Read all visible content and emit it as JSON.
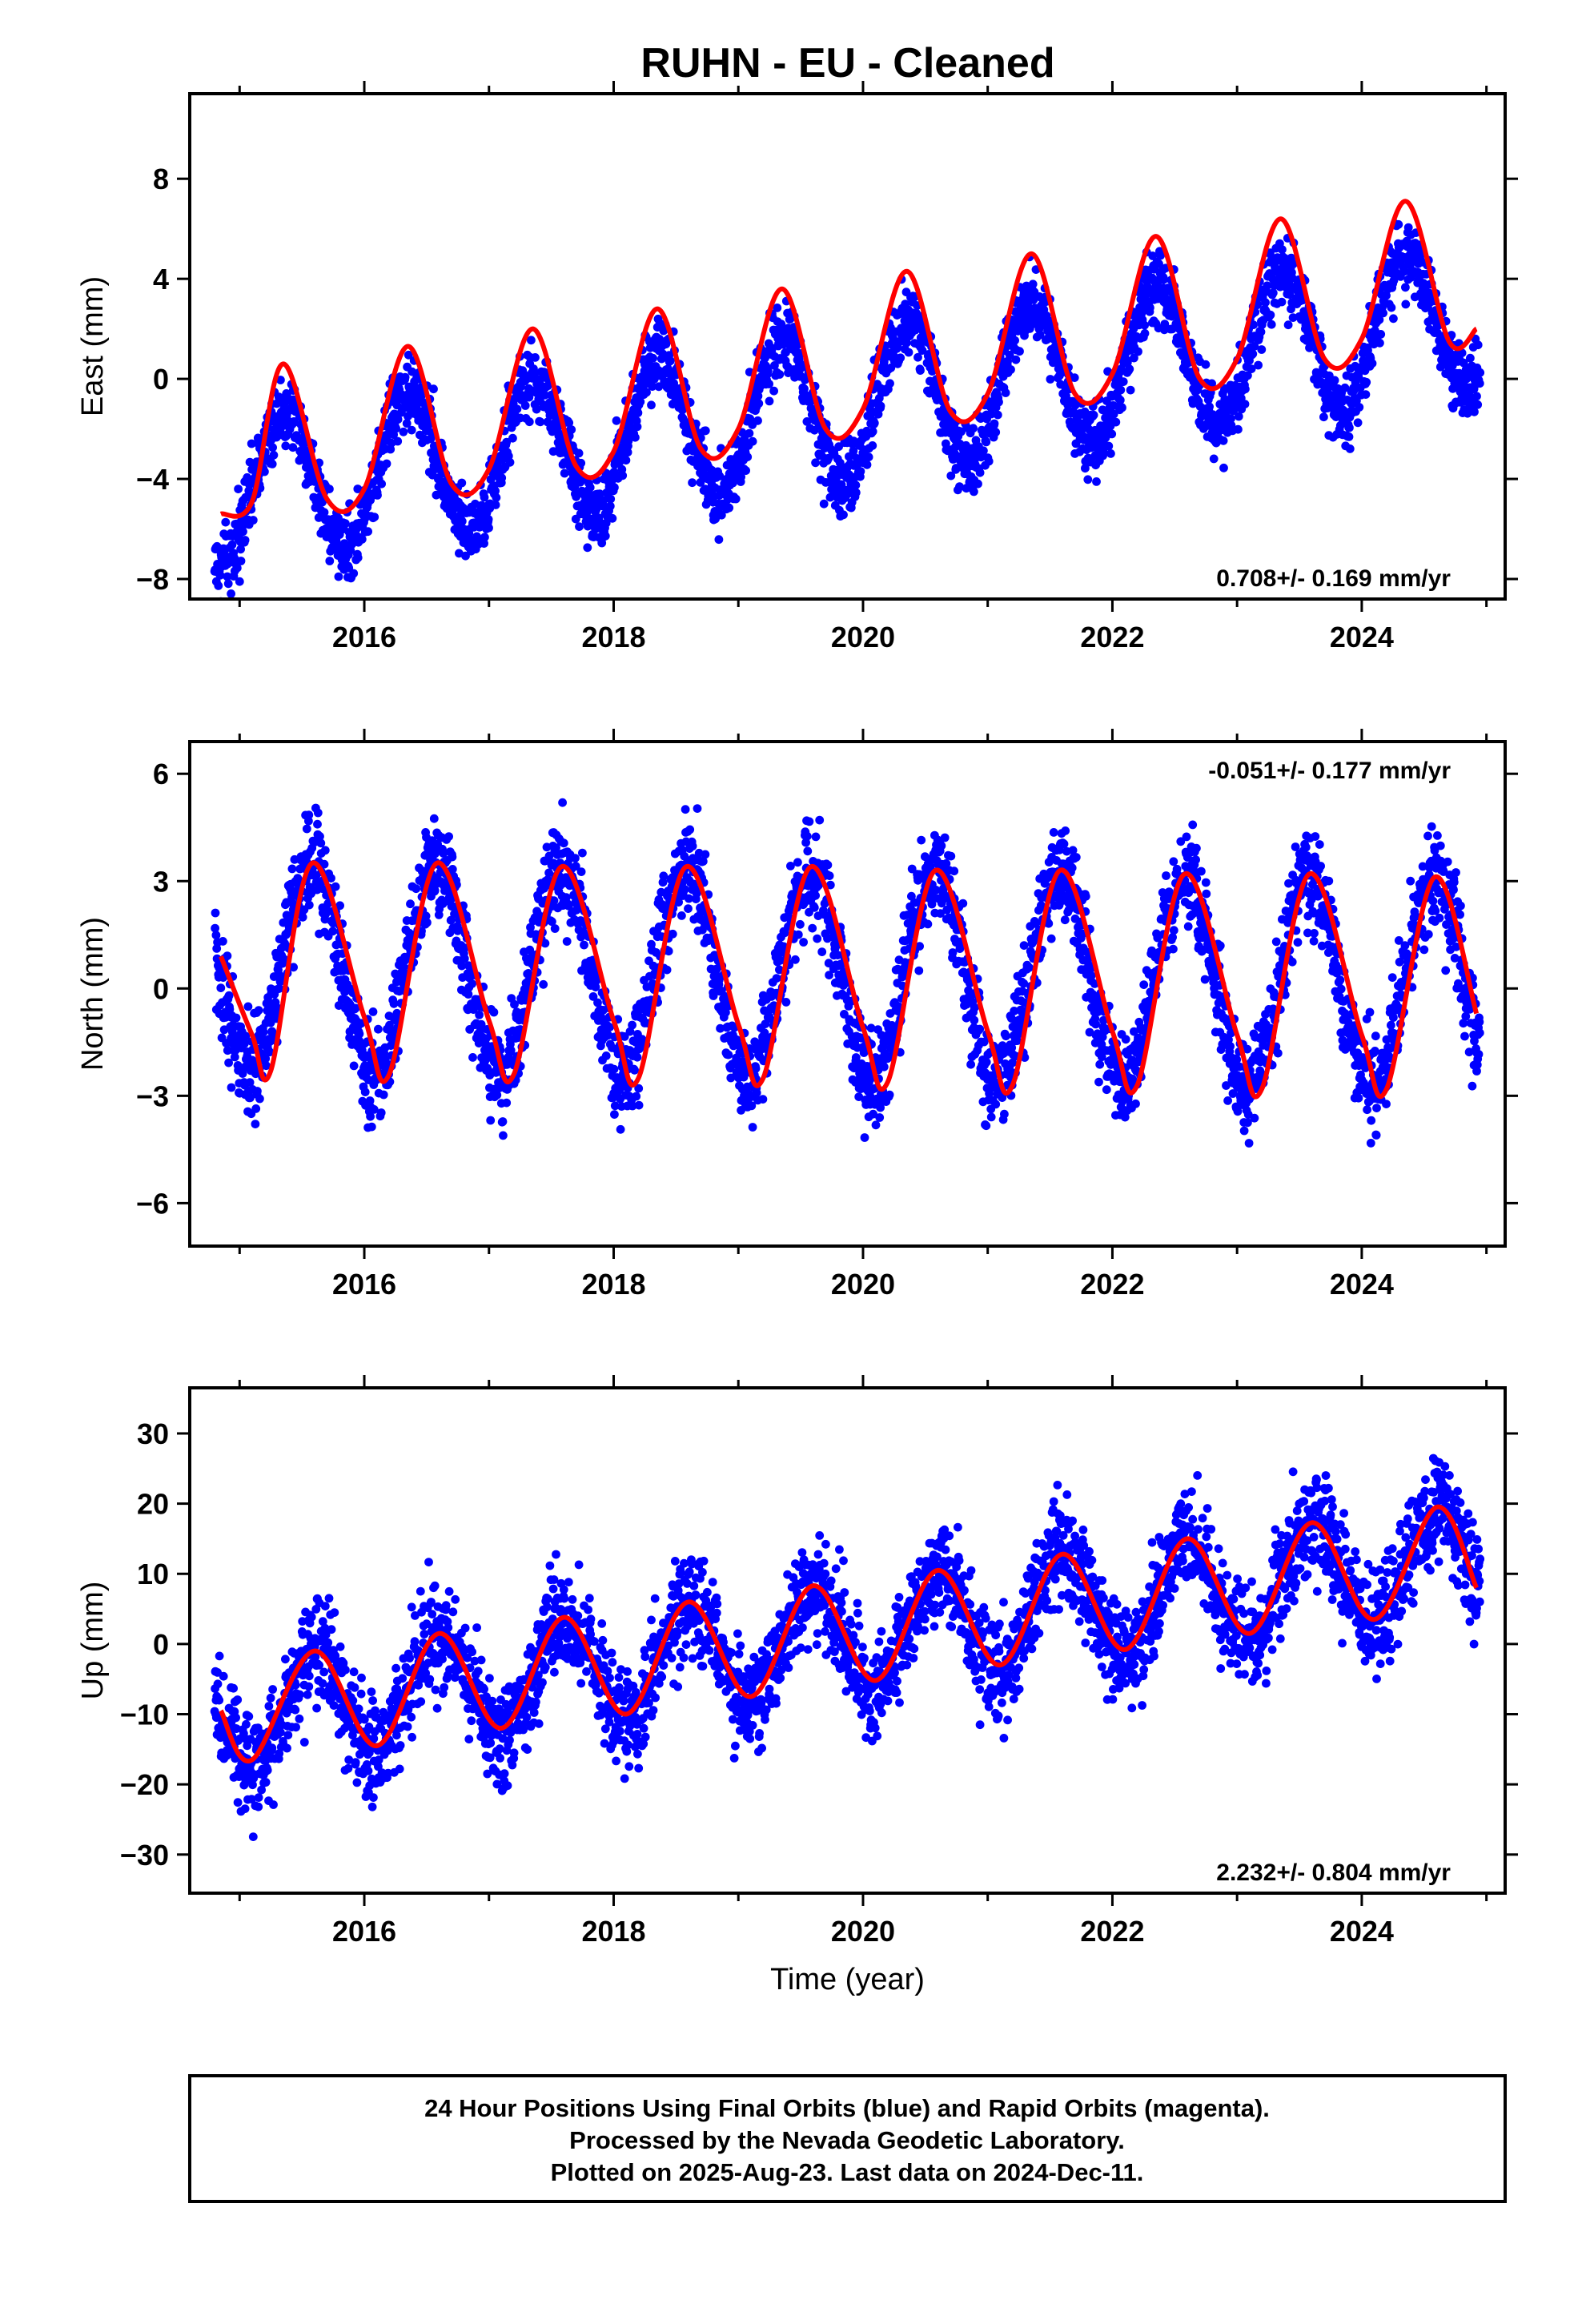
{
  "title": "RUHN  - EU - Cleaned",
  "chart_data": [
    {
      "type": "scatter",
      "ylabel": "East (mm)",
      "xlabel": "",
      "xlim": [
        2014.6,
        2025.15
      ],
      "ylim": [
        -8.8,
        11.4
      ],
      "yticks": [
        -8,
        -4,
        0,
        4,
        8
      ],
      "xticks": [
        2016,
        2018,
        2020,
        2022,
        2024
      ],
      "rate_text": "0.708+/- 0.169 mm/yr",
      "rate_position": "bottom-right",
      "fit_color": "#ff0000",
      "point_color": "#0000ff",
      "data_range": [
        2014.8,
        2024.95
      ],
      "model": {
        "offset": -1.6,
        "slope": 0.708,
        "ref_year": 2019.0,
        "annual_amp": 2.9,
        "annual_peak": 2014.35,
        "noise_sd": 1.0
      },
      "series": [
        {
          "x": [
            2014.85,
            2015.1,
            2015.35,
            2015.7,
            2016.0,
            2016.35,
            2016.7,
            2017.0,
            2017.35,
            2017.7,
            2018.0,
            2018.35,
            2018.7,
            2019.0,
            2019.35,
            2019.7,
            2020.0,
            2020.35,
            2020.7,
            2021.0,
            2021.35,
            2021.7,
            2022.0,
            2022.35,
            2022.7,
            2023.0,
            2023.35,
            2023.7,
            2024.0,
            2024.35,
            2024.7,
            2024.92
          ],
          "y": [
            -5.4,
            -4.9,
            0.6,
            -4.8,
            -4.4,
            1.3,
            -4.2,
            -3.6,
            2.0,
            -3.5,
            -2.9,
            2.8,
            -2.8,
            -2.0,
            3.6,
            -2.0,
            -1.2,
            4.3,
            -1.3,
            -0.6,
            5.0,
            -0.6,
            0.2,
            5.7,
            0.0,
            0.8,
            6.4,
            0.8,
            1.6,
            7.1,
            1.5,
            2.0
          ]
        }
      ]
    },
    {
      "type": "scatter",
      "ylabel": "North (mm)",
      "xlabel": "",
      "xlim": [
        2014.6,
        2025.15
      ],
      "ylim": [
        -7.2,
        6.9
      ],
      "yticks": [
        -6,
        -3,
        0,
        3,
        6
      ],
      "xticks": [
        2016,
        2018,
        2020,
        2022,
        2024
      ],
      "rate_text": "-0.051+/- 0.177 mm/yr",
      "rate_position": "top-right",
      "fit_color": "#ff0000",
      "point_color": "#0000ff",
      "data_range": [
        2014.8,
        2024.95
      ],
      "model": {
        "offset": 0.4,
        "slope": -0.051,
        "ref_year": 2019.0,
        "annual_amp": 2.9,
        "annual_peak": 2014.58,
        "noise_sd": 0.95
      },
      "series": [
        {
          "x": [
            2014.85,
            2015.1,
            2015.25,
            2015.58,
            2016.0,
            2016.2,
            2016.58,
            2017.0,
            2017.2,
            2017.58,
            2018.0,
            2018.2,
            2018.58,
            2019.0,
            2019.2,
            2019.58,
            2020.0,
            2020.2,
            2020.58,
            2021.0,
            2021.2,
            2021.58,
            2022.0,
            2022.2,
            2022.58,
            2023.0,
            2023.2,
            2023.58,
            2024.0,
            2024.2,
            2024.58,
            2024.92
          ],
          "y": [
            0.9,
            -1.3,
            -2.3,
            3.5,
            -0.8,
            -2.4,
            3.5,
            -0.9,
            -2.4,
            3.4,
            -0.9,
            -2.5,
            3.4,
            -1.0,
            -2.5,
            3.4,
            -1.1,
            -2.6,
            3.3,
            -1.2,
            -2.7,
            3.3,
            -1.2,
            -2.7,
            3.2,
            -1.3,
            -2.8,
            3.2,
            -1.3,
            -2.8,
            3.1,
            -0.7
          ]
        }
      ]
    },
    {
      "type": "scatter",
      "ylabel": "Up (mm)",
      "xlabel": "Time (year)",
      "xlim": [
        2014.6,
        2025.15
      ],
      "ylim": [
        -35.5,
        36.5
      ],
      "yticks": [
        -30,
        -20,
        -10,
        0,
        10,
        20,
        30
      ],
      "xticks": [
        2016,
        2018,
        2020,
        2022,
        2024
      ],
      "rate_text": "2.232+/- 0.804 mm/yr",
      "rate_position": "bottom-right",
      "fit_color": "#ff0000",
      "point_color": "#0000ff",
      "data_range": [
        2014.8,
        2024.95
      ],
      "model": {
        "offset": -1.0,
        "slope": 2.232,
        "ref_year": 2019.0,
        "annual_amp": 7.8,
        "annual_peak": 2014.6,
        "noise_sd": 5.0
      },
      "series": [
        {
          "x": [
            2014.85,
            2015.1,
            2015.6,
            2016.1,
            2016.6,
            2017.1,
            2017.6,
            2018.1,
            2018.6,
            2019.1,
            2019.6,
            2020.1,
            2020.6,
            2021.1,
            2021.6,
            2022.1,
            2022.6,
            2023.1,
            2023.6,
            2024.1,
            2024.6,
            2024.92
          ],
          "y": [
            -9.5,
            -16.5,
            -1.0,
            -14.5,
            1.5,
            -12.0,
            3.8,
            -10.0,
            6.0,
            -7.5,
            8.3,
            -5.2,
            10.5,
            -3.0,
            12.8,
            -0.8,
            15.0,
            1.5,
            17.3,
            3.5,
            19.5,
            8.0
          ]
        }
      ]
    }
  ],
  "footer": {
    "line1": "24 Hour Positions Using Final Orbits (blue) and Rapid Orbits (magenta).",
    "line2": "Processed by the Nevada Geodetic Laboratory.",
    "line3": "Plotted on 2025-Aug-23. Last data on 2024-Dec-11."
  }
}
